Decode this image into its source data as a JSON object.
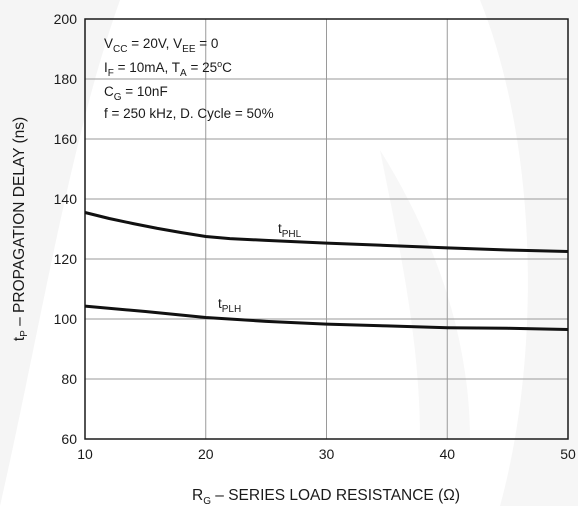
{
  "chart_data": {
    "type": "line",
    "xlabel": {
      "main": "R",
      "sub": "G",
      "rest": " – SERIES LOAD RESISTANCE (Ω)"
    },
    "ylabel": {
      "prefix": "t",
      "sub": "P",
      "rest": " – PROPAGATION DELAY (ns)"
    },
    "xlim": [
      10,
      50
    ],
    "ylim": [
      60,
      200
    ],
    "xticks": [
      "10",
      "20",
      "30",
      "40",
      "50"
    ],
    "yticks": [
      "60",
      "80",
      "100",
      "120",
      "140",
      "160",
      "180",
      "200"
    ],
    "grid": true,
    "annotations": {
      "line1": {
        "a": "V",
        "a_sub": "CC",
        "b": " = 20V, V",
        "b_sub": "EE",
        "c": " = 0"
      },
      "line2": {
        "a": "I",
        "a_sub": "F",
        "b": " = 10mA, T",
        "b_sub": "A",
        "c": " = 25",
        "sup": "o",
        "d": "C"
      },
      "line3": {
        "a": "C",
        "a_sub": "G",
        "b": " = 10nF"
      },
      "line4": "f = 250 kHz, D. Cycle = 50%"
    },
    "series": [
      {
        "name": {
          "main": "t",
          "sub": "PHL"
        },
        "x": [
          10,
          12,
          14,
          16,
          18,
          20,
          22,
          25,
          30,
          35,
          40,
          45,
          50
        ],
        "y": [
          135.5,
          133.5,
          131.8,
          130.2,
          128.8,
          127.5,
          126.8,
          126.2,
          125.3,
          124.5,
          123.7,
          123.0,
          122.5
        ]
      },
      {
        "name": {
          "main": "t",
          "sub": "PLH"
        },
        "x": [
          10,
          15,
          20,
          25,
          30,
          35,
          40,
          45,
          50
        ],
        "y": [
          104.3,
          102.5,
          100.5,
          99.2,
          98.3,
          97.7,
          97.1,
          96.9,
          96.5
        ]
      }
    ]
  }
}
